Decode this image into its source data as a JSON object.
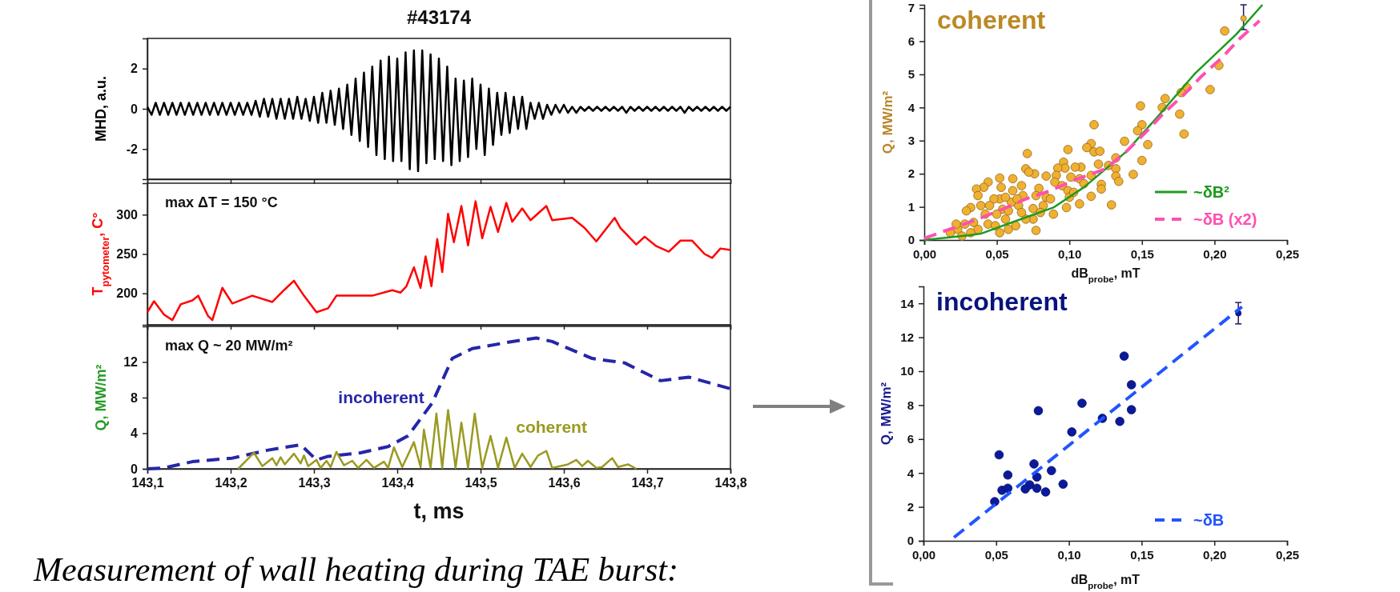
{
  "chart_data": [
    {
      "type": "line",
      "title": "#43174",
      "ylabel": "MHD, a.u.",
      "xlim": [
        143.1,
        143.8
      ],
      "xticks": [
        {
          "value": 143.1,
          "label": null
        },
        {
          "value": 143.2,
          "label": null
        },
        {
          "value": 143.3,
          "label": null
        },
        {
          "value": 143.4,
          "label": null
        },
        {
          "value": 143.5,
          "label": null
        },
        {
          "value": 143.6,
          "label": null
        },
        {
          "value": 143.7,
          "label": null
        },
        {
          "value": 143.8,
          "label": null
        }
      ],
      "ylim": [
        -3.5,
        3.5
      ],
      "yticks": [
        -2,
        0,
        2
      ],
      "tick_labels": "y",
      "x": [
        143.1,
        143.105,
        143.11,
        143.115,
        143.12,
        143.125,
        143.13,
        143.135,
        143.14,
        143.145,
        143.15,
        143.155,
        143.16,
        143.165,
        143.17,
        143.175,
        143.18,
        143.185,
        143.19,
        143.195,
        143.2,
        143.205,
        143.21,
        143.215,
        143.22,
        143.225,
        143.23,
        143.235,
        143.24,
        143.245,
        143.25,
        143.255,
        143.26,
        143.265,
        143.27,
        143.275,
        143.28,
        143.285,
        143.29,
        143.295,
        143.3,
        143.305,
        143.31,
        143.315,
        143.32,
        143.325,
        143.33,
        143.335,
        143.34,
        143.345,
        143.35,
        143.355,
        143.36,
        143.365,
        143.37,
        143.375,
        143.38,
        143.385,
        143.39,
        143.395,
        143.4,
        143.405,
        143.41,
        143.415,
        143.42,
        143.425,
        143.43,
        143.435,
        143.44,
        143.445,
        143.45,
        143.455,
        143.46,
        143.465,
        143.47,
        143.475,
        143.48,
        143.485,
        143.49,
        143.495,
        143.5,
        143.505,
        143.51,
        143.515,
        143.52,
        143.525,
        143.53,
        143.535,
        143.54,
        143.545,
        143.55,
        143.555,
        143.56,
        143.565,
        143.57,
        143.575,
        143.58,
        143.585,
        143.59,
        143.595,
        143.6,
        143.605,
        143.61,
        143.615,
        143.62,
        143.625,
        143.63,
        143.635,
        143.64,
        143.645,
        143.65,
        143.655,
        143.66,
        143.665,
        143.67,
        143.675,
        143.68,
        143.685,
        143.69,
        143.695,
        143.7,
        143.705,
        143.71,
        143.715,
        143.72,
        143.725,
        143.73,
        143.735,
        143.74,
        143.745,
        143.75,
        143.755,
        143.76,
        143.765,
        143.77,
        143.775,
        143.78,
        143.785,
        143.79,
        143.795,
        143.8
      ],
      "series": [
        {
          "color": "#000000",
          "values": [
            0.1,
            -0.3,
            0.3,
            -0.3,
            0.3,
            -0.3,
            0.3,
            -0.3,
            0.3,
            -0.3,
            0.3,
            -0.3,
            0.3,
            -0.3,
            0.3,
            -0.3,
            0.3,
            -0.3,
            0.3,
            -0.3,
            0.3,
            -0.3,
            0.3,
            -0.3,
            0.3,
            -0.3,
            0.4,
            -0.4,
            0.5,
            -0.4,
            0.5,
            -0.5,
            0.5,
            -0.5,
            0.5,
            -0.5,
            0.6,
            -0.5,
            0.5,
            -0.6,
            0.6,
            -0.7,
            0.8,
            -0.7,
            0.9,
            -0.8,
            1.0,
            -1.0,
            1.2,
            -1.3,
            1.5,
            -1.6,
            1.8,
            -1.9,
            2.1,
            -2.3,
            2.4,
            -2.5,
            2.6,
            -2.6,
            2.5,
            -2.6,
            2.8,
            -3.0,
            2.9,
            -3.1,
            2.9,
            -2.7,
            2.7,
            -2.5,
            2.5,
            -2.6,
            2.1,
            -2.8,
            1.5,
            -2.6,
            1.4,
            -2.4,
            1.5,
            -2.0,
            1.2,
            -2.3,
            1.0,
            -1.8,
            0.8,
            -1.3,
            0.8,
            -1.2,
            0.6,
            -1.0,
            0.6,
            -1.0,
            0.3,
            -0.5,
            0.3,
            -0.5,
            0.2,
            -0.3,
            0.2,
            -0.2,
            0.2,
            -0.2,
            0.1,
            -0.2,
            0.1,
            -0.1,
            0.1,
            -0.1,
            0.1,
            -0.1,
            0.1,
            -0.1,
            0.1,
            -0.1,
            0.1,
            -0.2,
            0.1,
            -0.1,
            0.1,
            -0.1,
            0.1,
            -0.1,
            0.1,
            -0.1,
            0.1,
            -0.1,
            0.1,
            -0.1,
            0.1,
            -0.2,
            0.1,
            -0.1,
            0.1,
            -0.1,
            0.1,
            -0.1,
            0.1,
            -0.1,
            0.1,
            -0.1,
            0.1
          ]
        }
      ]
    },
    {
      "type": "line",
      "ylabel": "T$_{pytometer}$, C°",
      "annotations": [
        "max ΔT = 150 °C"
      ],
      "xlim": [
        143.1,
        143.8
      ],
      "xticks": [
        {
          "value": 143.1,
          "label": null
        },
        {
          "value": 143.2,
          "label": null
        },
        {
          "value": 143.3,
          "label": null
        },
        {
          "value": 143.4,
          "label": null
        },
        {
          "value": 143.5,
          "label": null
        },
        {
          "value": 143.6,
          "label": null
        },
        {
          "value": 143.7,
          "label": null
        },
        {
          "value": 143.8,
          "label": null
        }
      ],
      "ylim": [
        160,
        340
      ],
      "yticks": [
        200,
        250,
        300
      ],
      "tick_labels": "y",
      "x": [
        143.1,
        143.108,
        143.12,
        143.13,
        143.14,
        143.154,
        143.161,
        143.173,
        143.178,
        143.19,
        143.202,
        143.226,
        143.25,
        143.264,
        143.276,
        143.288,
        143.303,
        143.317,
        143.327,
        143.346,
        143.37,
        143.394,
        143.404,
        143.411,
        143.42,
        143.428,
        143.434,
        143.441,
        143.448,
        143.454,
        143.461,
        143.468,
        143.477,
        143.485,
        143.494,
        143.502,
        143.512,
        143.521,
        143.531,
        143.538,
        143.55,
        143.56,
        143.579,
        143.586,
        143.61,
        143.625,
        143.639,
        143.661,
        143.668,
        143.687,
        143.697,
        143.711,
        143.726,
        143.74,
        143.754,
        143.769,
        143.778,
        143.788,
        143.8
      ],
      "series": [
        {
          "color": "#ff0000",
          "values": [
            176,
            190,
            173,
            166,
            186,
            191,
            197,
            171,
            166,
            207,
            187,
            197,
            189,
            204,
            216,
            197,
            176,
            181,
            197,
            197,
            197,
            204,
            201,
            209,
            233,
            207,
            247,
            209,
            269,
            227,
            301,
            265,
            311,
            261,
            317,
            270,
            310,
            278,
            315,
            291,
            308,
            293,
            311,
            293,
            296,
            283,
            266,
            296,
            283,
            262,
            272,
            260,
            253,
            267,
            267,
            250,
            245,
            257,
            255
          ]
        }
      ]
    },
    {
      "type": "line",
      "ylabel": "Q, MW/m²",
      "xlabel": "t, ms",
      "annotations": [
        "max Q ~ 20 MW/m²",
        "Measurement of wall heating during TAE burst:"
      ],
      "xlim": [
        143.1,
        143.8
      ],
      "xticks": [
        {
          "value": 143.1,
          "label": "143,1"
        },
        {
          "value": 143.2,
          "label": "143,2"
        },
        {
          "value": 143.3,
          "label": "143,3"
        },
        {
          "value": 143.4,
          "label": "143,4"
        },
        {
          "value": 143.5,
          "label": "143,5"
        },
        {
          "value": 143.6,
          "label": "143,6"
        },
        {
          "value": 143.7,
          "label": "143,7"
        },
        {
          "value": 143.8,
          "label": "143,8"
        }
      ],
      "ylim": [
        0,
        16
      ],
      "yticks": [
        0,
        4,
        8,
        12
      ],
      "legend": false,
      "series": [
        {
          "name": "incoherent",
          "color": "#2626a8",
          "line_style": "dashed",
          "x": [
            143.1,
            143.12,
            143.154,
            143.202,
            143.245,
            143.284,
            143.303,
            143.317,
            143.356,
            143.389,
            143.413,
            143.442,
            143.466,
            143.49,
            143.538,
            143.567,
            143.586,
            143.634,
            143.673,
            143.716,
            143.75,
            143.8
          ],
          "values": [
            0,
            0.1,
            0.8,
            1.2,
            2.1,
            2.7,
            1.0,
            1.4,
            1.8,
            2.5,
            3.7,
            7.4,
            12.4,
            13.5,
            14.3,
            14.7,
            14.3,
            12.4,
            11.9,
            9.9,
            10.3,
            9.0
          ]
        },
        {
          "name": "coherent",
          "color": "#9a9a22",
          "x": [
            143.209,
            143.228,
            143.238,
            143.25,
            143.255,
            143.26,
            143.265,
            143.276,
            143.284,
            143.288,
            143.293,
            143.303,
            143.308,
            143.315,
            143.32,
            143.327,
            143.336,
            143.346,
            143.353,
            143.363,
            143.372,
            143.384,
            143.389,
            143.396,
            143.406,
            143.42,
            143.428,
            143.432,
            143.44,
            143.447,
            143.454,
            143.461,
            143.47,
            143.477,
            143.485,
            143.493,
            143.502,
            143.512,
            143.521,
            143.531,
            143.541,
            143.55,
            143.56,
            143.569,
            143.579,
            143.586,
            143.605,
            143.615,
            143.622,
            143.629,
            143.639,
            143.646,
            143.658,
            143.665,
            143.677,
            143.687
          ],
          "values": [
            0,
            1.8,
            0.3,
            1.2,
            0.4,
            1.3,
            0.5,
            1.7,
            0.6,
            1.5,
            0.3,
            1.0,
            0.1,
            0.9,
            0.2,
            1.9,
            0.4,
            0.9,
            0.1,
            1.0,
            0.1,
            0.8,
            0.1,
            2.4,
            0.2,
            3.0,
            0.2,
            4.4,
            0.1,
            6.2,
            0.1,
            6.6,
            0.1,
            5.2,
            0.1,
            6.2,
            0.1,
            3.7,
            0.1,
            3.5,
            0.1,
            1.7,
            0.2,
            1.5,
            2.0,
            0.1,
            0.5,
            1.0,
            0.3,
            0.9,
            0.1,
            0.2,
            1.2,
            0.2,
            0.5,
            0
          ]
        }
      ]
    },
    {
      "type": "scatter",
      "title": "coherent",
      "ylabel": "Q, MW/m²",
      "xlabel": "dB$_{probe}$, mT",
      "xlim": [
        0,
        0.25
      ],
      "xticks": [
        {
          "value": 0,
          "label": "0,00"
        },
        {
          "value": 0.05,
          "label": "0,05"
        },
        {
          "value": 0.1,
          "label": "0,10"
        },
        {
          "value": 0.15,
          "label": "0,15"
        },
        {
          "value": 0.2,
          "label": "0,20"
        },
        {
          "value": 0.25,
          "label": "0,25"
        }
      ],
      "ylim": [
        0,
        7.1
      ],
      "yticks": [
        0,
        1,
        2,
        3,
        4,
        5,
        6,
        7
      ],
      "legend": "bottom right",
      "series": [
        {
          "color": "#f0b030",
          "marker": "circle",
          "x": [
            0.207,
            0.203,
            0.197,
            0.181,
            0.177,
            0.166,
            0.164,
            0.176,
            0.179,
            0.149,
            0.15,
            0.147,
            0.154,
            0.15,
            0.144,
            0.138,
            0.117,
            0.115,
            0.112,
            0.117,
            0.121,
            0.099,
            0.12,
            0.127,
            0.132,
            0.132,
            0.132,
            0.134,
            0.122,
            0.122,
            0.115,
            0.107,
            0.129,
            0.108,
            0.104,
            0.096,
            0.097,
            0.092,
            0.091,
            0.09,
            0.095,
            0.099,
            0.1,
            0.098,
            0.089,
            0.084,
            0.076,
            0.071,
            0.07,
            0.072,
            0.079,
            0.077,
            0.075,
            0.075,
            0.077,
            0.067,
            0.068,
            0.065,
            0.061,
            0.061,
            0.06,
            0.056,
            0.053,
            0.052,
            0.052,
            0.054,
            0.052,
            0.05,
            0.044,
            0.041,
            0.036,
            0.037,
            0.039,
            0.042,
            0.044,
            0.049,
            0.048,
            0.045,
            0.032,
            0.029,
            0.028,
            0.034,
            0.037,
            0.032,
            0.023,
            0.022,
            0.026,
            0.018,
            0.058,
            0.063,
            0.07,
            0.067,
            0.058,
            0.056,
            0.064,
            0.082,
            0.084,
            0.08,
            0.087,
            0.103,
            0.107,
            0.101,
            0.115,
            0.11
          ],
          "values": [
            6.31,
            5.27,
            4.54,
            4.6,
            4.45,
            4.27,
            4.0,
            3.8,
            3.2,
            4.05,
            3.48,
            3.3,
            2.88,
            2.4,
            1.98,
            2.98,
            3.48,
            2.91,
            2.79,
            2.66,
            2.68,
            2.73,
            2.29,
            2.25,
            2.48,
            2.15,
            1.93,
            1.77,
            1.68,
            1.54,
            1.32,
            1.09,
            1.06,
            2.2,
            2.2,
            2.35,
            2.17,
            2.17,
            1.95,
            1.75,
            1.64,
            1.49,
            1.29,
            0.98,
            0.78,
            1.93,
            2.0,
            2.61,
            2.15,
            2.05,
            1.56,
            1.34,
            0.95,
            0.63,
            0.29,
            1.64,
            1.34,
            1.04,
            1.85,
            1.49,
            1.14,
            0.63,
            1.59,
            1.87,
            1.24,
            0.93,
            0.22,
            0.78,
            1.75,
            1.59,
            1.54,
            1.34,
            1.04,
            0.78,
            0.48,
            0.43,
            1.24,
            1.04,
            0.98,
            0.88,
            0.48,
            0.53,
            0.32,
            0.22,
            0.32,
            0.48,
            0.12,
            0.22,
            0.32,
            0.43,
            0.63,
            0.83,
            0.88,
            1.29,
            1.24,
            1.04,
            1.29,
            0.83,
            1.24,
            1.44,
            1.85,
            1.9,
            1.95,
            1.7
          ]
        },
        {
          "color": "#f0b030",
          "marker": "circle",
          "x": [
            0.22
          ],
          "values": [
            6.69
          ],
          "errors": [
            [
              6.35,
              7.1
            ]
          ]
        },
        {
          "name": "~δB²",
          "type": "line",
          "color": "#1e9a1e",
          "x": [
            0,
            0.03,
            0.039,
            0.073,
            0.089,
            0.11,
            0.139,
            0.16,
            0.186,
            0.215,
            0.233
          ],
          "values": [
            0,
            0.14,
            0.19,
            0.73,
            0.98,
            1.59,
            2.66,
            3.68,
            5.0,
            6.21,
            7.1
          ]
        },
        {
          "name": "~δB (x2)",
          "type": "line",
          "line_style": "dashed",
          "color": "#ff50b0",
          "x": [
            0,
            0.021,
            0.037,
            0.054,
            0.07,
            0.087,
            0.103,
            0.125,
            0.139,
            0.153,
            0.165,
            0.179,
            0.191,
            0.205,
            0.217,
            0.231
          ],
          "values": [
            0.05,
            0.38,
            0.63,
            0.93,
            1.24,
            1.49,
            1.8,
            2.15,
            2.66,
            3.27,
            3.83,
            4.39,
            4.94,
            5.5,
            6.06,
            6.62
          ]
        }
      ]
    },
    {
      "type": "scatter",
      "title": "incoherent",
      "ylabel": "Q, MW/m²",
      "xlabel": "dB$_{probe}$, mT",
      "xlim": [
        0,
        0.25
      ],
      "xticks": [
        {
          "value": 0,
          "label": "0,00"
        },
        {
          "value": 0.05,
          "label": "0,05"
        },
        {
          "value": 0.1,
          "label": "0,10"
        },
        {
          "value": 0.15,
          "label": "0,15"
        },
        {
          "value": 0.2,
          "label": "0,20"
        },
        {
          "value": 0.25,
          "label": "0,25"
        }
      ],
      "ylim": [
        0,
        15
      ],
      "yticks": [
        0,
        2,
        4,
        6,
        8,
        10,
        12,
        14
      ],
      "legend": "bottom right",
      "series": [
        {
          "color": "#0a1a9e",
          "marker": "circle",
          "x": [
            0.138,
            0.143,
            0.109,
            0.079,
            0.143,
            0.123,
            0.135,
            0.102,
            0.052,
            0.076,
            0.088,
            0.058,
            0.078,
            0.096,
            0.073,
            0.07,
            0.054,
            0.058,
            0.078,
            0.084,
            0.049
          ],
          "values": [
            10.89,
            9.2,
            8.11,
            7.67,
            7.73,
            7.22,
            7.04,
            6.42,
            5.07,
            4.53,
            4.14,
            3.88,
            3.76,
            3.34,
            3.3,
            3.06,
            2.98,
            3.1,
            3.1,
            2.88,
            2.31
          ]
        },
        {
          "color": "#0a1a9e",
          "marker": "circle",
          "x": [
            0.2165
          ],
          "values": [
            13.42
          ],
          "errors": [
            0.63
          ]
        },
        {
          "name": "~δB",
          "type": "line",
          "line_style": "dashed",
          "color": "#2255ff",
          "x": [
            0.021,
            0.219
          ],
          "values": [
            0.2,
            13.8
          ]
        }
      ]
    }
  ]
}
